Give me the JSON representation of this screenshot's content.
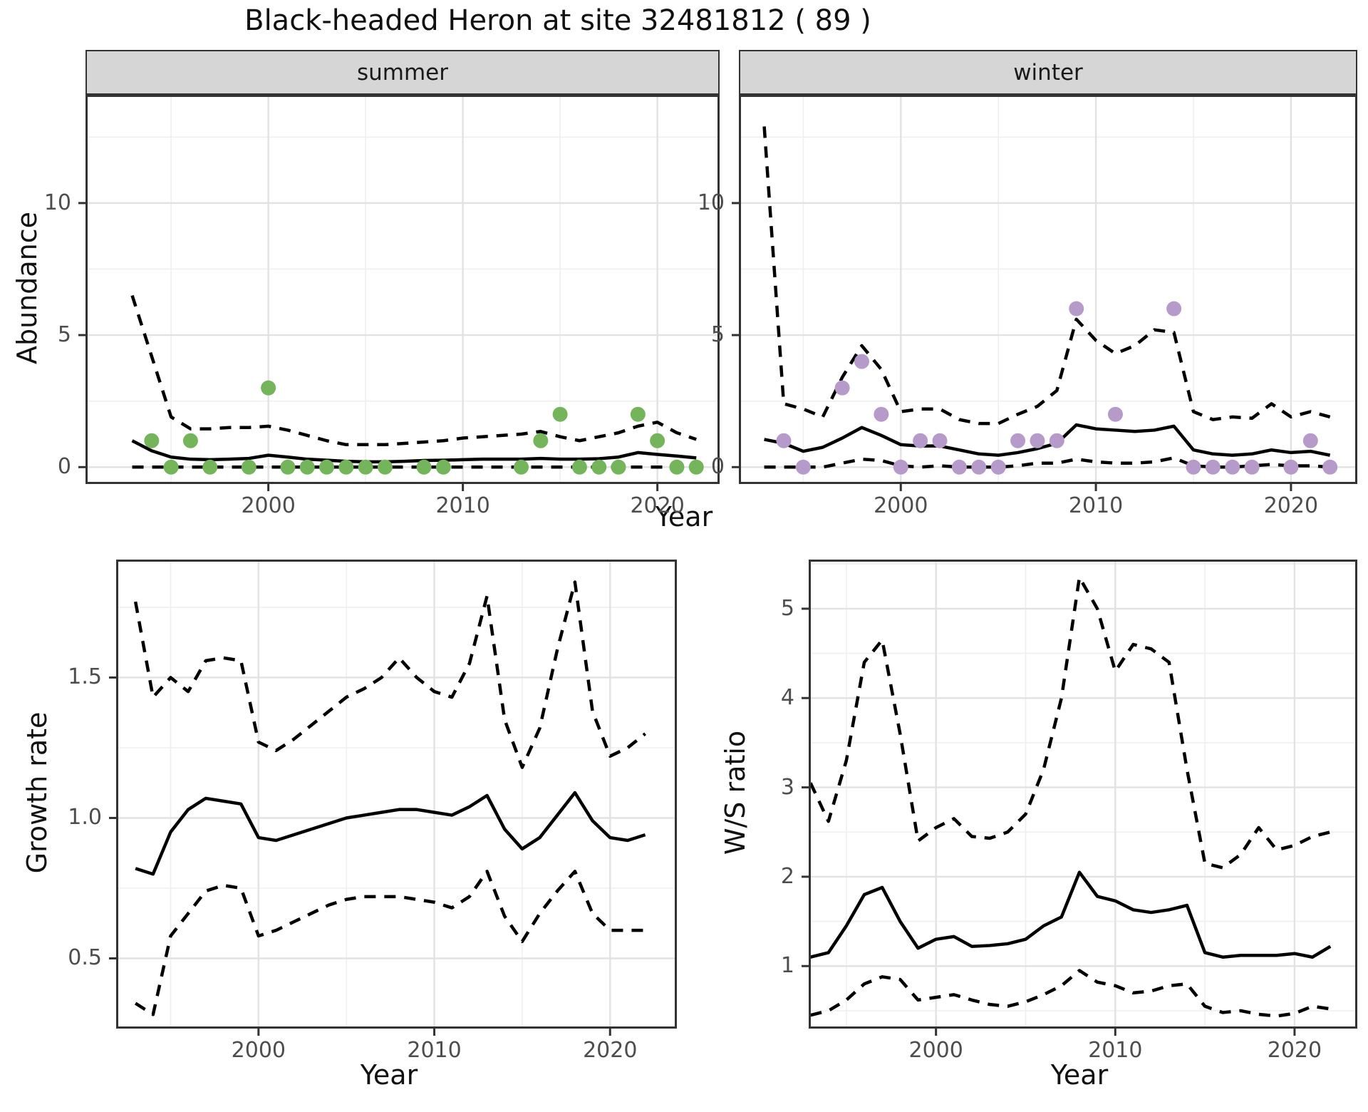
{
  "title": "Black-headed Heron at site 32481812 ( 89 )",
  "facets": {
    "summer": "summer",
    "winter": "winter"
  },
  "axis_titles": {
    "x": "Year",
    "abundance": "Abundance",
    "growth": "Growth rate",
    "ws": "W/S ratio"
  },
  "colors": {
    "summer_points": "#74b55b",
    "winter_points": "#b69aca",
    "line": "#000000"
  },
  "chart_data": [
    {
      "id": "summer",
      "type": "scatter",
      "facet_label": "summer",
      "xlabel": "Year",
      "ylabel": "Abundance",
      "xlim": [
        1990.6,
        2023.2
      ],
      "ylim": [
        -0.64,
        14.1
      ],
      "xticks": {
        "values": [
          2000,
          2010,
          2020
        ],
        "labels": [
          "2000",
          "2010",
          "2020"
        ],
        "minor": [
          1995,
          2005,
          2015
        ]
      },
      "yticks": {
        "values": [
          0,
          5,
          10
        ],
        "labels": [
          "0",
          "5",
          "10"
        ],
        "minor": [
          2.5,
          7.5,
          12.5
        ]
      },
      "x": [
        1993,
        1994,
        1995,
        1996,
        1997,
        1998,
        1999,
        2000,
        2001,
        2002,
        2003,
        2004,
        2005,
        2006,
        2007,
        2008,
        2009,
        2010,
        2011,
        2012,
        2013,
        2014,
        2015,
        2016,
        2017,
        2018,
        2019,
        2020,
        2021,
        2022
      ],
      "series": [
        {
          "name": "mean",
          "style": "solid",
          "values": [
            1.0,
            0.62,
            0.38,
            0.3,
            0.28,
            0.3,
            0.33,
            0.45,
            0.38,
            0.3,
            0.26,
            0.22,
            0.2,
            0.2,
            0.22,
            0.25,
            0.26,
            0.28,
            0.3,
            0.3,
            0.3,
            0.33,
            0.3,
            0.3,
            0.32,
            0.38,
            0.55,
            0.48,
            0.42,
            0.35
          ]
        },
        {
          "name": "upper_ci",
          "style": "dashed",
          "values": [
            6.5,
            4.2,
            1.9,
            1.45,
            1.45,
            1.5,
            1.5,
            1.55,
            1.4,
            1.2,
            1.0,
            0.85,
            0.85,
            0.85,
            0.9,
            0.95,
            1.0,
            1.1,
            1.15,
            1.2,
            1.25,
            1.35,
            1.15,
            1.0,
            1.15,
            1.3,
            1.55,
            1.7,
            1.3,
            1.05
          ]
        },
        {
          "name": "lower_ci",
          "style": "dashed",
          "values": [
            0,
            0,
            0,
            0,
            0,
            0,
            0,
            0,
            0,
            0,
            0,
            0,
            0,
            0,
            0,
            0,
            0,
            0,
            0,
            0,
            0,
            0,
            0,
            0,
            0,
            0,
            0,
            0,
            0,
            0
          ]
        }
      ],
      "points": [
        [
          1994,
          1
        ],
        [
          1995,
          0
        ],
        [
          1996,
          1
        ],
        [
          1997,
          0
        ],
        [
          1999,
          0
        ],
        [
          2000,
          3
        ],
        [
          2001,
          0
        ],
        [
          2002,
          0
        ],
        [
          2003,
          0
        ],
        [
          2004,
          0
        ],
        [
          2005,
          0
        ],
        [
          2006,
          0
        ],
        [
          2008,
          0
        ],
        [
          2009,
          0
        ],
        [
          2013,
          0
        ],
        [
          2014,
          1
        ],
        [
          2015,
          2
        ],
        [
          2016,
          0
        ],
        [
          2017,
          0
        ],
        [
          2018,
          0
        ],
        [
          2019,
          2
        ],
        [
          2020,
          1
        ],
        [
          2021,
          0
        ],
        [
          2022,
          0
        ]
      ],
      "point_color": "#74b55b"
    },
    {
      "id": "winter",
      "type": "scatter",
      "facet_label": "winter",
      "xlabel": "Year",
      "ylabel": "Abundance",
      "xlim": [
        1991.7,
        2023.4
      ],
      "ylim": [
        -0.64,
        14.1
      ],
      "xticks": {
        "values": [
          2000,
          2010,
          2020
        ],
        "labels": [
          "2000",
          "2010",
          "2020"
        ],
        "minor": [
          1995,
          2005,
          2015
        ]
      },
      "yticks": {
        "values": [
          0,
          5,
          10
        ],
        "labels": [
          "0",
          "5",
          "10"
        ],
        "minor": [
          2.5,
          7.5,
          12.5
        ]
      },
      "x": [
        1993,
        1994,
        1995,
        1996,
        1997,
        1998,
        1999,
        2000,
        2001,
        2002,
        2003,
        2004,
        2005,
        2006,
        2007,
        2008,
        2009,
        2010,
        2011,
        2012,
        2013,
        2014,
        2015,
        2016,
        2017,
        2018,
        2019,
        2020,
        2021,
        2022
      ],
      "series": [
        {
          "name": "mean",
          "style": "solid",
          "values": [
            1.05,
            0.9,
            0.6,
            0.75,
            1.1,
            1.5,
            1.2,
            0.85,
            0.8,
            0.8,
            0.65,
            0.5,
            0.45,
            0.55,
            0.7,
            0.9,
            1.6,
            1.45,
            1.4,
            1.35,
            1.4,
            1.55,
            0.65,
            0.5,
            0.45,
            0.5,
            0.65,
            0.55,
            0.6,
            0.45
          ]
        },
        {
          "name": "upper_ci",
          "style": "dashed",
          "values": [
            12.9,
            2.4,
            2.2,
            1.9,
            3.4,
            4.6,
            3.7,
            2.1,
            2.2,
            2.2,
            1.8,
            1.65,
            1.65,
            2.0,
            2.3,
            2.9,
            5.6,
            4.8,
            4.3,
            4.6,
            5.2,
            5.1,
            2.1,
            1.8,
            1.9,
            1.85,
            2.4,
            1.9,
            2.1,
            1.9
          ]
        },
        {
          "name": "lower_ci",
          "style": "dashed",
          "values": [
            0,
            0,
            0,
            0,
            0.15,
            0.3,
            0.25,
            0.05,
            0,
            0.05,
            0,
            0,
            0,
            0.05,
            0.15,
            0.15,
            0.3,
            0.2,
            0.15,
            0.15,
            0.2,
            0.35,
            0.05,
            0,
            0,
            0.05,
            0.1,
            0.05,
            0.05,
            0
          ]
        }
      ],
      "points": [
        [
          1994,
          1
        ],
        [
          1995,
          0
        ],
        [
          1997,
          3
        ],
        [
          1998,
          4
        ],
        [
          1999,
          2
        ],
        [
          2000,
          0
        ],
        [
          2001,
          1
        ],
        [
          2002,
          1
        ],
        [
          2003,
          0
        ],
        [
          2004,
          0
        ],
        [
          2005,
          0
        ],
        [
          2006,
          1
        ],
        [
          2007,
          1
        ],
        [
          2008,
          1
        ],
        [
          2009,
          6
        ],
        [
          2011,
          2
        ],
        [
          2014,
          6
        ],
        [
          2015,
          0
        ],
        [
          2016,
          0
        ],
        [
          2017,
          0
        ],
        [
          2018,
          0
        ],
        [
          2020,
          0
        ],
        [
          2021,
          1
        ],
        [
          2022,
          0
        ]
      ],
      "point_color": "#b69aca"
    },
    {
      "id": "growth",
      "type": "line",
      "xlabel": "Year",
      "ylabel": "Growth rate",
      "xlim": [
        1991.9,
        2023.8
      ],
      "ylim": [
        0.25,
        1.92
      ],
      "xticks": {
        "values": [
          2000,
          2010,
          2020
        ],
        "labels": [
          "2000",
          "2010",
          "2020"
        ],
        "minor": [
          1995,
          2005,
          2015
        ]
      },
      "yticks": {
        "values": [
          0.5,
          1.0,
          1.5
        ],
        "labels": [
          "0.5",
          "1.0",
          "1.5"
        ],
        "minor": [
          0.75,
          1.25,
          1.75
        ]
      },
      "x": [
        1993,
        1994,
        1995,
        1996,
        1997,
        1998,
        1999,
        2000,
        2001,
        2002,
        2003,
        2004,
        2005,
        2006,
        2007,
        2008,
        2009,
        2010,
        2011,
        2012,
        2013,
        2014,
        2015,
        2016,
        2017,
        2018,
        2019,
        2020,
        2021,
        2022
      ],
      "series": [
        {
          "name": "mean",
          "style": "solid",
          "values": [
            0.82,
            0.8,
            0.95,
            1.03,
            1.07,
            1.06,
            1.05,
            0.93,
            0.92,
            0.94,
            0.96,
            0.98,
            1.0,
            1.01,
            1.02,
            1.03,
            1.03,
            1.02,
            1.01,
            1.04,
            1.08,
            0.96,
            0.89,
            0.93,
            1.01,
            1.09,
            0.99,
            0.93,
            0.92,
            0.94
          ]
        },
        {
          "name": "upper_ci",
          "style": "dashed",
          "values": [
            1.77,
            1.43,
            1.5,
            1.45,
            1.56,
            1.57,
            1.56,
            1.27,
            1.24,
            1.28,
            1.33,
            1.38,
            1.43,
            1.46,
            1.5,
            1.57,
            1.5,
            1.45,
            1.43,
            1.55,
            1.79,
            1.35,
            1.18,
            1.32,
            1.6,
            1.84,
            1.38,
            1.22,
            1.25,
            1.3
          ]
        },
        {
          "name": "lower_ci",
          "style": "dashed",
          "values": [
            0.34,
            0.3,
            0.58,
            0.66,
            0.74,
            0.76,
            0.75,
            0.58,
            0.6,
            0.63,
            0.66,
            0.69,
            0.71,
            0.72,
            0.72,
            0.72,
            0.71,
            0.7,
            0.68,
            0.72,
            0.81,
            0.65,
            0.56,
            0.66,
            0.74,
            0.81,
            0.66,
            0.6,
            0.6,
            0.6
          ]
        }
      ],
      "points": [],
      "point_color": "#000000"
    },
    {
      "id": "ws",
      "type": "line",
      "xlabel": "Year",
      "ylabel": "W/S ratio",
      "xlim": [
        1992.9,
        2023.5
      ],
      "ylim": [
        0.3,
        5.55
      ],
      "xticks": {
        "values": [
          2000,
          2010,
          2020
        ],
        "labels": [
          "2000",
          "2010",
          "2020"
        ],
        "minor": [
          1995,
          2005,
          2015
        ]
      },
      "yticks": {
        "values": [
          1,
          2,
          3,
          4,
          5
        ],
        "labels": [
          "1",
          "2",
          "3",
          "4",
          "5"
        ],
        "minor": [
          0.5,
          1.5,
          2.5,
          3.5,
          4.5,
          5.5
        ]
      },
      "x": [
        1993,
        1994,
        1995,
        1996,
        1997,
        1998,
        1999,
        2000,
        2001,
        2002,
        2003,
        2004,
        2005,
        2006,
        2007,
        2008,
        2009,
        2010,
        2011,
        2012,
        2013,
        2014,
        2015,
        2016,
        2017,
        2018,
        2019,
        2020,
        2021,
        2022
      ],
      "series": [
        {
          "name": "mean",
          "style": "solid",
          "values": [
            1.1,
            1.15,
            1.45,
            1.8,
            1.88,
            1.5,
            1.2,
            1.3,
            1.33,
            1.22,
            1.23,
            1.25,
            1.3,
            1.45,
            1.55,
            2.05,
            1.78,
            1.73,
            1.63,
            1.6,
            1.63,
            1.68,
            1.15,
            1.1,
            1.12,
            1.12,
            1.12,
            1.14,
            1.1,
            1.22
          ]
        },
        {
          "name": "upper_ci",
          "style": "dashed",
          "values": [
            3.05,
            2.62,
            3.3,
            4.4,
            4.65,
            3.6,
            2.4,
            2.55,
            2.65,
            2.45,
            2.43,
            2.5,
            2.7,
            3.2,
            4.0,
            5.35,
            5.0,
            4.3,
            4.6,
            4.55,
            4.4,
            3.2,
            2.15,
            2.1,
            2.25,
            2.55,
            2.3,
            2.35,
            2.45,
            2.5
          ]
        },
        {
          "name": "lower_ci",
          "style": "dashed",
          "values": [
            0.45,
            0.5,
            0.62,
            0.8,
            0.88,
            0.85,
            0.62,
            0.65,
            0.68,
            0.62,
            0.57,
            0.55,
            0.6,
            0.68,
            0.78,
            0.95,
            0.82,
            0.78,
            0.7,
            0.72,
            0.78,
            0.8,
            0.55,
            0.48,
            0.5,
            0.46,
            0.44,
            0.47,
            0.55,
            0.52
          ]
        }
      ],
      "points": [],
      "point_color": "#000000"
    }
  ]
}
